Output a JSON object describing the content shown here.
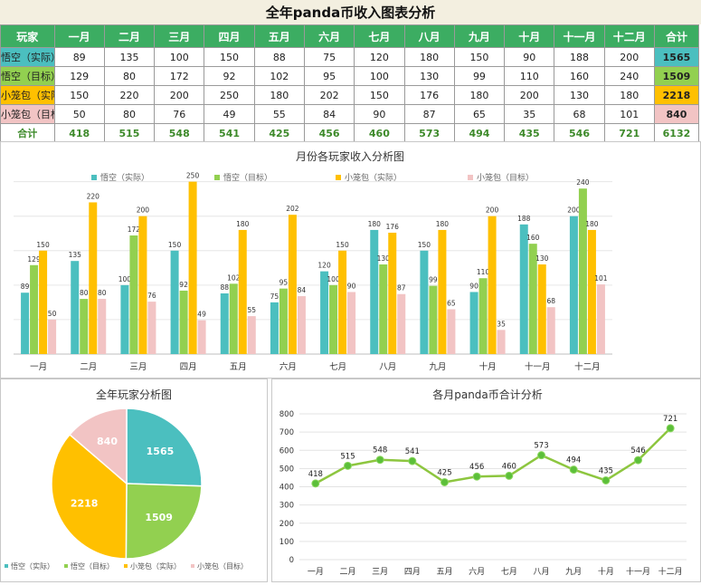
{
  "page_title": "全年panda币收入图表分析",
  "table": {
    "header": [
      "玩家",
      "一月",
      "二月",
      "三月",
      "四月",
      "五月",
      "六月",
      "七月",
      "八月",
      "九月",
      "十月",
      "十一月",
      "十二月",
      "合计"
    ],
    "rows": [
      {
        "label": "悟空（实际）",
        "values": [
          89,
          135,
          100,
          150,
          88,
          75,
          120,
          180,
          150,
          90,
          188,
          200
        ],
        "total": 1565
      },
      {
        "label": "悟空（目标）",
        "values": [
          129,
          80,
          172,
          92,
          102,
          95,
          100,
          130,
          99,
          110,
          160,
          240
        ],
        "total": 1509
      },
      {
        "label": "小笼包（实际）",
        "values": [
          150,
          220,
          200,
          250,
          180,
          202,
          150,
          176,
          180,
          200,
          130,
          180
        ],
        "total": 2218
      },
      {
        "label": "小笼包（目标）",
        "values": [
          50,
          80,
          76,
          49,
          55,
          84,
          90,
          87,
          65,
          35,
          68,
          101
        ],
        "total": 840
      }
    ],
    "total_row": {
      "label": "合计",
      "values": [
        418,
        515,
        548,
        541,
        425,
        456,
        460,
        573,
        494,
        435,
        546,
        721
      ],
      "total": 6132
    }
  },
  "colors": {
    "header_green": "#3cad62",
    "wukong_actual": "#4bbfbf",
    "wukong_target": "#92d050",
    "xlb_actual": "#ffc000",
    "xlb_target": "#f2c4c4",
    "line_green": "#8dc63f",
    "grand_total_red": "#e0161b"
  },
  "chart_data": [
    {
      "type": "bar",
      "title": "月份各玩家收入分析图",
      "categories": [
        "一月",
        "二月",
        "三月",
        "四月",
        "五月",
        "六月",
        "七月",
        "八月",
        "九月",
        "十月",
        "十一月",
        "十二月"
      ],
      "series": [
        {
          "name": "悟空（实际）",
          "values": [
            89,
            135,
            100,
            150,
            88,
            75,
            120,
            180,
            150,
            90,
            188,
            200
          ]
        },
        {
          "name": "悟空（目标）",
          "values": [
            129,
            80,
            172,
            92,
            102,
            95,
            100,
            130,
            99,
            110,
            160,
            240
          ]
        },
        {
          "name": "小笼包（实际）",
          "values": [
            150,
            220,
            200,
            250,
            180,
            202,
            150,
            176,
            180,
            200,
            130,
            180
          ]
        },
        {
          "name": "小笼包（目标）",
          "values": [
            50,
            80,
            76,
            49,
            55,
            84,
            90,
            87,
            65,
            35,
            68,
            101
          ]
        }
      ],
      "ylim": [
        0,
        260
      ],
      "legend": "top",
      "grid": true
    },
    {
      "type": "pie",
      "title": "全年玩家分析图",
      "labels": [
        "悟空（实际）",
        "悟空（目标）",
        "小笼包（实际）",
        "小笼包（目标）"
      ],
      "values": [
        1565,
        1509,
        2218,
        840
      ],
      "legend": "bottom"
    },
    {
      "type": "line",
      "title": "各月panda币合计分析",
      "categories": [
        "一月",
        "二月",
        "三月",
        "四月",
        "五月",
        "六月",
        "七月",
        "八月",
        "九月",
        "十月",
        "十一月",
        "十二月"
      ],
      "values": [
        418,
        515,
        548,
        541,
        425,
        456,
        460,
        573,
        494,
        435,
        546,
        721
      ],
      "ylim": [
        0,
        800
      ],
      "yticks": [
        "0",
        "100",
        "200",
        "300",
        "400",
        "500",
        "600",
        "700",
        "800"
      ],
      "grid": true
    }
  ]
}
